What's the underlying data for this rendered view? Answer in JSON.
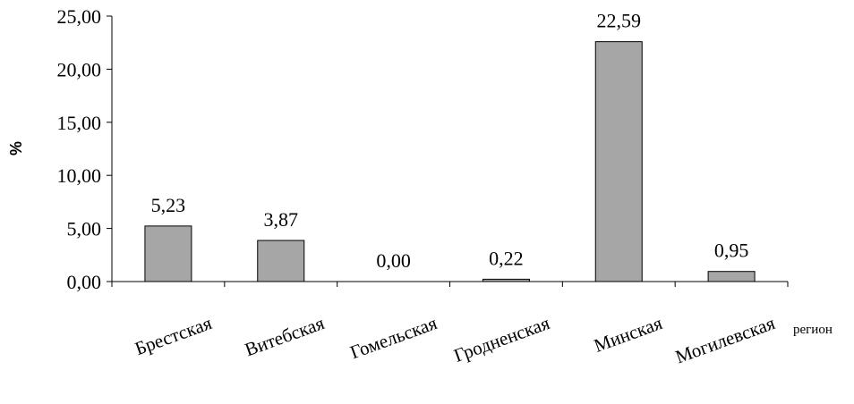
{
  "chart_data": {
    "type": "bar",
    "categories": [
      "Брестская",
      "Витебская",
      "Гомельская",
      "Гродненская",
      "Минская",
      "Могилевская"
    ],
    "values": [
      5.23,
      3.87,
      0.0,
      0.22,
      22.59,
      0.95
    ],
    "value_labels": [
      "5,23",
      "3,87",
      "0,00",
      "0,22",
      "22,59",
      "0,95"
    ],
    "title": "",
    "xlabel": "регион",
    "ylabel": "%",
    "ylim": [
      0,
      25
    ],
    "yticks": [
      "0,00",
      "5,00",
      "10,00",
      "15,00",
      "20,00",
      "25,00"
    ],
    "grid": false,
    "legend": "none",
    "colors": {
      "bar_fill": "#a6a6a6",
      "bar_stroke": "#000000"
    }
  }
}
